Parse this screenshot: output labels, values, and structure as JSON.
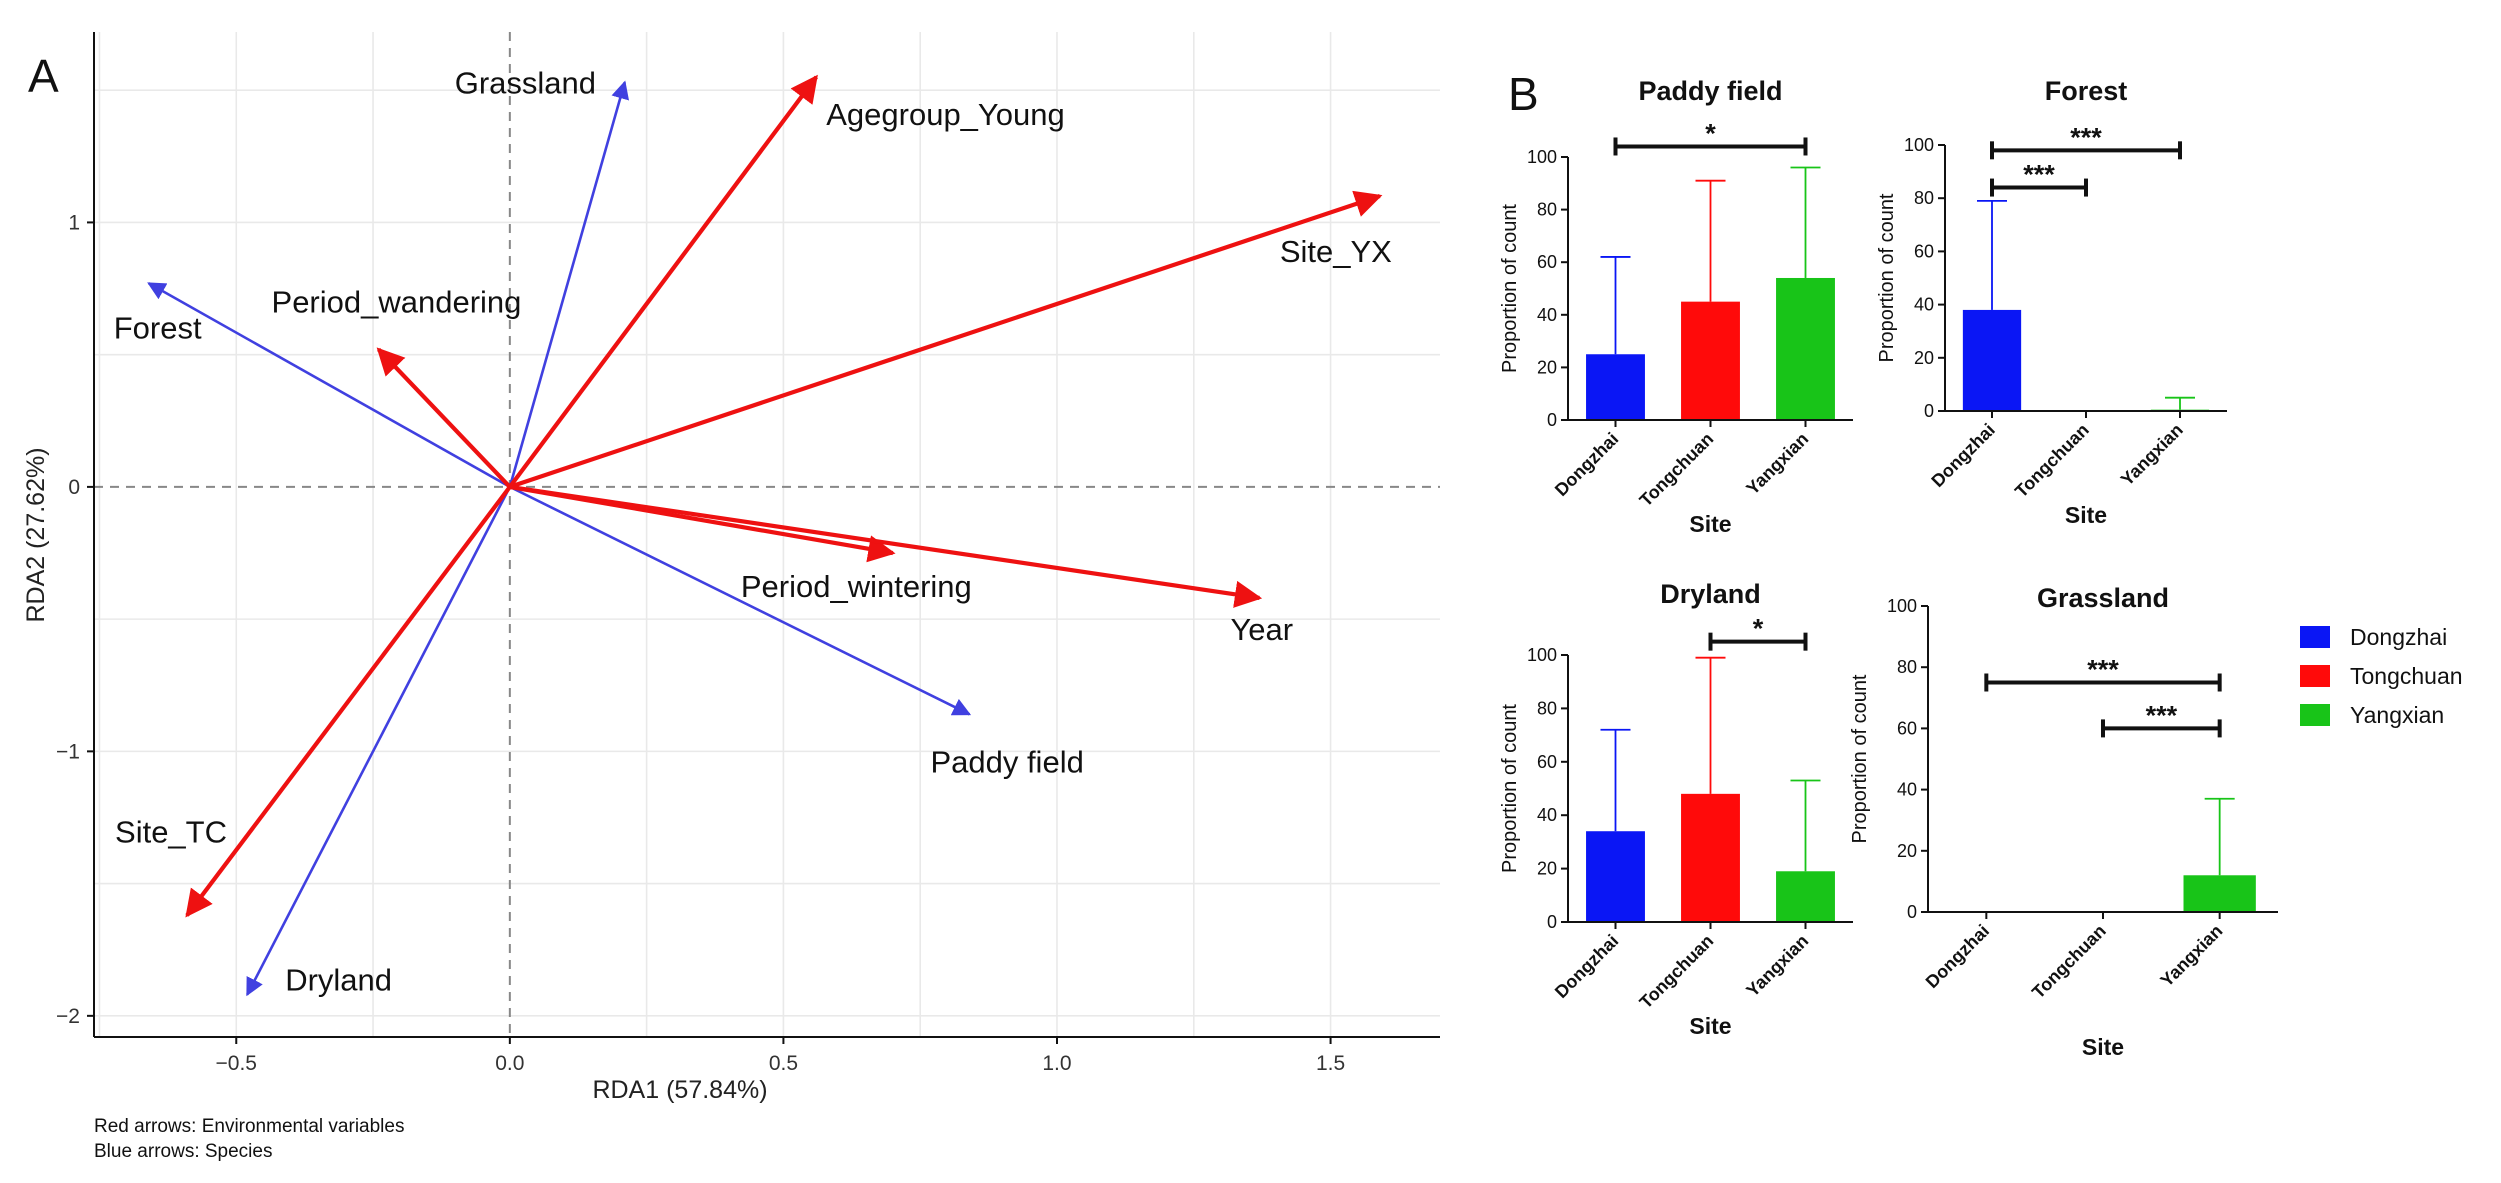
{
  "panel_labels": {
    "a": "A",
    "b": "B"
  },
  "footnotes": {
    "red": "Red arrows: Environmental variables",
    "blue": "Blue arrows: Species"
  },
  "colors": {
    "env": "#ee1111",
    "species": "#4040e0",
    "Dongzhai": "#0a16f5",
    "Tongchuan": "#ff0a0a",
    "Yangxian": "#18c418"
  },
  "legend": [
    "Dongzhai",
    "Tongchuan",
    "Yangxian"
  ],
  "chart_data": [
    {
      "id": "rda",
      "type": "scatter",
      "subtype": "biplot",
      "xlabel": "RDA1 (57.84%)",
      "ylabel": "RDA2 (27.62%)",
      "xlim": [
        -0.76,
        1.7
      ],
      "ylim": [
        -2.08,
        1.72
      ],
      "xticks": [
        -0.5,
        0,
        0.5,
        1,
        1.5
      ],
      "xtick_labels": [
        "−0.5",
        "0.0",
        "0.5",
        "1.0",
        "1.5"
      ],
      "yticks": [
        -2,
        -1,
        0,
        1
      ],
      "ytick_labels": [
        "−2",
        "−1",
        "0",
        "1"
      ],
      "env_arrows": [
        {
          "name": "Agegroup_Young",
          "x": 0.56,
          "y": 1.55
        },
        {
          "name": "Site_YX",
          "x": 1.59,
          "y": 1.1
        },
        {
          "name": "Period_wandering",
          "x": -0.24,
          "y": 0.52
        },
        {
          "name": "Period_wintering",
          "x": 0.7,
          "y": -0.25
        },
        {
          "name": "Year",
          "x": 1.37,
          "y": -0.42
        },
        {
          "name": "Site_TC",
          "x": -0.59,
          "y": -1.62
        }
      ],
      "species_arrows": [
        {
          "name": "Grassland",
          "x": 0.21,
          "y": 1.53
        },
        {
          "name": "Forest",
          "x": -0.66,
          "y": 0.77
        },
        {
          "name": "Paddy field",
          "x": 0.84,
          "y": -0.86
        },
        {
          "name": "Dryland",
          "x": -0.48,
          "y": -1.92
        }
      ]
    },
    {
      "id": "paddy",
      "type": "bar",
      "title": "Paddy field",
      "categories": [
        "Dongzhai",
        "Tongchuan",
        "Yangxian"
      ],
      "values": [
        25,
        45,
        54
      ],
      "errors": [
        37,
        46,
        42
      ],
      "ylim": [
        0,
        100
      ],
      "yticks": [
        0,
        20,
        40,
        60,
        80,
        100
      ],
      "xlabel": "Site",
      "ylabel": "Proportion of count",
      "significance": [
        {
          "from": 0,
          "to": 2,
          "y": 104,
          "label": "*"
        }
      ]
    },
    {
      "id": "forest",
      "type": "bar",
      "title": "Forest",
      "categories": [
        "Dongzhai",
        "Tongchuan",
        "Yangxian"
      ],
      "values": [
        38,
        0,
        0.5
      ],
      "errors": [
        41,
        0,
        4.5
      ],
      "ylim": [
        0,
        100
      ],
      "yticks": [
        0,
        20,
        40,
        60,
        80,
        100
      ],
      "xlabel": "Site",
      "ylabel": "Proportion of count",
      "significance": [
        {
          "from": 0,
          "to": 2,
          "y": 98,
          "label": "***"
        },
        {
          "from": 0,
          "to": 1,
          "y": 84,
          "label": "***"
        }
      ]
    },
    {
      "id": "dryland",
      "type": "bar",
      "title": "Dryland",
      "categories": [
        "Dongzhai",
        "Tongchuan",
        "Yangxian"
      ],
      "values": [
        34,
        48,
        19
      ],
      "errors": [
        38,
        51,
        34
      ],
      "ylim": [
        0,
        100
      ],
      "yticks": [
        0,
        20,
        40,
        60,
        80,
        100
      ],
      "xlabel": "Site",
      "ylabel": "Proportion of count",
      "significance": [
        {
          "from": 1,
          "to": 2,
          "y": 105,
          "label": "*"
        }
      ]
    },
    {
      "id": "grassland",
      "type": "bar",
      "title": "Grassland",
      "categories": [
        "Dongzhai",
        "Tongchuan",
        "Yangxian"
      ],
      "values": [
        0,
        0,
        12
      ],
      "errors": [
        0,
        0,
        25
      ],
      "ylim": [
        0,
        100
      ],
      "yticks": [
        0,
        20,
        40,
        60,
        80,
        100
      ],
      "xlabel": "Site",
      "ylabel": "Proportion of count",
      "significance": [
        {
          "from": 0,
          "to": 2,
          "y": 75,
          "label": "***"
        },
        {
          "from": 1,
          "to": 2,
          "y": 60,
          "label": "***"
        }
      ]
    }
  ]
}
